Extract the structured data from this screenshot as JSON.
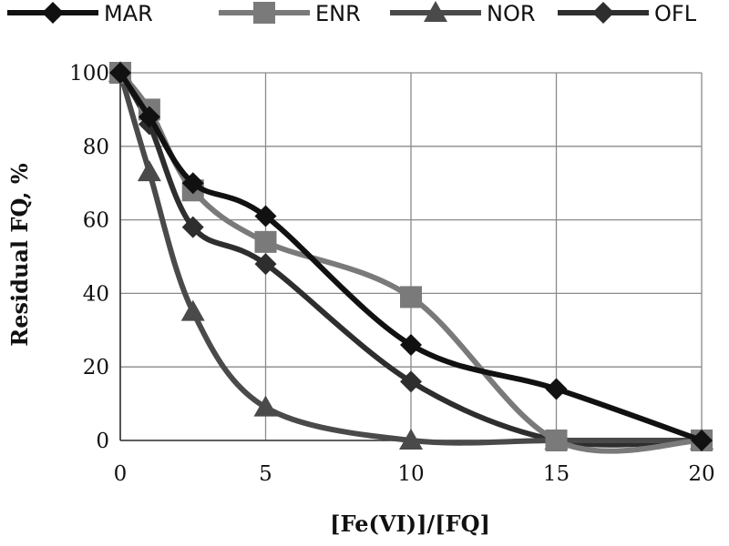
{
  "chart_data": {
    "type": "line",
    "title": "",
    "xlabel": "[Fe(VI)]/[FQ]",
    "ylabel": "Residual FQ, %",
    "xlim": [
      0,
      20
    ],
    "ylim": [
      0,
      100
    ],
    "xticks": [
      "0",
      "5",
      "10",
      "15",
      "20"
    ],
    "yticks": [
      "0",
      "20",
      "40",
      "60",
      "80",
      "100"
    ],
    "grid": true,
    "legend_position": "top",
    "series": [
      {
        "name": "MAR",
        "color": "#111111",
        "marker": "diamond",
        "x": [
          0,
          1,
          2.5,
          5,
          10,
          15,
          20
        ],
        "y": [
          100,
          88,
          70,
          61,
          26,
          14,
          0
        ]
      },
      {
        "name": "ENR",
        "color": "#7a7a7a",
        "marker": "square",
        "x": [
          0,
          1,
          2.5,
          5,
          10,
          15,
          20
        ],
        "y": [
          100,
          90,
          68,
          54,
          39,
          0,
          0
        ]
      },
      {
        "name": "NOR",
        "color": "#4a4a4a",
        "marker": "triangle",
        "x": [
          0,
          1,
          2.5,
          5,
          10,
          15,
          20
        ],
        "y": [
          100,
          73,
          35,
          9,
          0,
          0,
          0
        ]
      },
      {
        "name": "OFL",
        "color": "#2e2e2e",
        "marker": "diamond",
        "x": [
          0,
          1,
          2.5,
          5,
          10,
          15,
          20
        ],
        "y": [
          100,
          86,
          58,
          48,
          16,
          0,
          0
        ]
      }
    ]
  }
}
